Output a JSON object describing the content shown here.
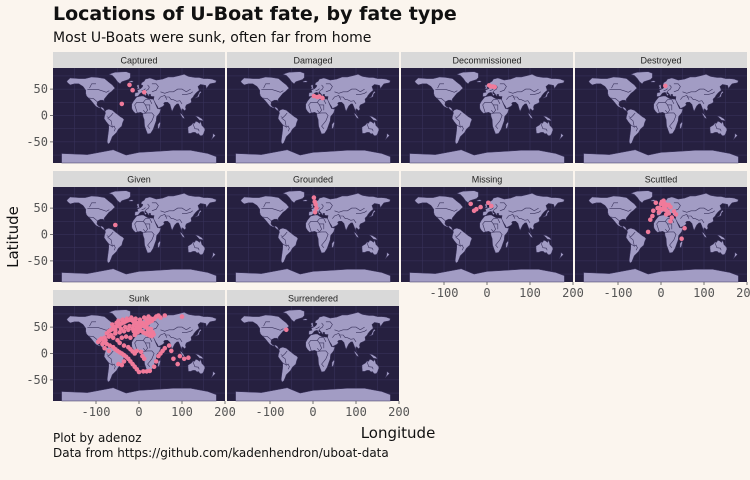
{
  "header": {
    "title": "Locations of U-Boat fate, by fate type",
    "subtitle": "Most U-Boats were sunk, often far from home"
  },
  "caption": {
    "line1": "Plot by adenoz",
    "line2": "Data from https://github.com/kadenhendron/uboat-data"
  },
  "colors": {
    "page_background": "#fbf5ee",
    "panel_background": "#262040",
    "land": "#a29cc4",
    "land_border": "#3a335c",
    "strip_background": "#d9d9d9",
    "point": "#f07a9a"
  },
  "chart_data": {
    "type": "scatter",
    "facet_by": "fate type",
    "xlabel": "Longitude",
    "ylabel": "Latitude",
    "xlim": [
      -200,
      200
    ],
    "ylim": [
      -90,
      90
    ],
    "x_ticks": [
      -100,
      0,
      100,
      200
    ],
    "y_ticks": [
      50,
      0,
      -50
    ],
    "x_tick_labels": [
      "-100",
      "0",
      "100",
      "200"
    ],
    "y_tick_labels": [
      "50",
      "0",
      "-50"
    ],
    "grid": true,
    "panels": [
      {
        "name": "Captured",
        "points": [
          [
            -22,
            58
          ],
          [
            -15,
            48
          ],
          [
            -40,
            22
          ],
          [
            12,
            44
          ]
        ]
      },
      {
        "name": "Damaged",
        "points": [
          [
            2,
            37
          ],
          [
            15,
            36
          ],
          [
            22,
            33
          ],
          [
            10,
            35
          ]
        ]
      },
      {
        "name": "Decommissioned",
        "points": [
          [
            5,
            57
          ],
          [
            9,
            55
          ],
          [
            14,
            55
          ],
          [
            18,
            54
          ]
        ]
      },
      {
        "name": "Destroyed",
        "points": [
          [
            10,
            56
          ]
        ]
      },
      {
        "name": "Given",
        "points": [
          [
            -55,
            18
          ]
        ]
      },
      {
        "name": "Grounded",
        "points": [
          [
            2,
            70
          ],
          [
            4,
            62
          ],
          [
            6,
            57
          ],
          [
            8,
            50
          ],
          [
            5,
            42
          ]
        ]
      },
      {
        "name": "Missing",
        "points": [
          [
            -38,
            58
          ],
          [
            -25,
            48
          ],
          [
            -15,
            52
          ],
          [
            -30,
            45
          ],
          [
            3,
            60
          ],
          [
            10,
            54
          ]
        ]
      },
      {
        "name": "Scuttled",
        "points": [
          [
            -12,
            60
          ],
          [
            -8,
            50
          ],
          [
            -18,
            45
          ],
          [
            -5,
            42
          ],
          [
            -20,
            35
          ],
          [
            -25,
            28
          ],
          [
            2,
            62
          ],
          [
            5,
            56
          ],
          [
            8,
            54
          ],
          [
            11,
            57
          ],
          [
            14,
            55
          ],
          [
            18,
            56
          ],
          [
            22,
            52
          ],
          [
            10,
            47
          ],
          [
            15,
            44
          ],
          [
            18,
            40
          ],
          [
            30,
            44
          ],
          [
            35,
            38
          ],
          [
            25,
            32
          ],
          [
            12,
            38
          ],
          [
            22,
            25
          ],
          [
            -30,
            5
          ],
          [
            48,
            -8
          ],
          [
            55,
            12
          ],
          [
            -5,
            50
          ],
          [
            0,
            58
          ],
          [
            3,
            48
          ],
          [
            6,
            64
          ]
        ]
      },
      {
        "name": "Sunk",
        "points": [
          [
            -75,
            38
          ],
          [
            -70,
            42
          ],
          [
            -65,
            45
          ],
          [
            -60,
            48
          ],
          [
            -55,
            50
          ],
          [
            -50,
            52
          ],
          [
            -45,
            55
          ],
          [
            -40,
            57
          ],
          [
            -35,
            59
          ],
          [
            -30,
            61
          ],
          [
            -25,
            63
          ],
          [
            -20,
            64
          ],
          [
            -15,
            62
          ],
          [
            -10,
            60
          ],
          [
            -5,
            58
          ],
          [
            0,
            57
          ],
          [
            5,
            56
          ],
          [
            10,
            55
          ],
          [
            15,
            55
          ],
          [
            20,
            57
          ],
          [
            25,
            60
          ],
          [
            30,
            62
          ],
          [
            35,
            66
          ],
          [
            40,
            70
          ],
          [
            45,
            72
          ],
          [
            -80,
            30
          ],
          [
            -78,
            25
          ],
          [
            -82,
            22
          ],
          [
            -85,
            18
          ],
          [
            -75,
            18
          ],
          [
            -68,
            15
          ],
          [
            -60,
            12
          ],
          [
            -55,
            8
          ],
          [
            -50,
            5
          ],
          [
            -45,
            2
          ],
          [
            -40,
            0
          ],
          [
            -35,
            -3
          ],
          [
            -30,
            -6
          ],
          [
            -25,
            -10
          ],
          [
            -20,
            -15
          ],
          [
            -15,
            -20
          ],
          [
            -10,
            -25
          ],
          [
            -5,
            -30
          ],
          [
            0,
            -35
          ],
          [
            10,
            -34
          ],
          [
            18,
            -34
          ],
          [
            25,
            -33
          ],
          [
            35,
            -25
          ],
          [
            40,
            -15
          ],
          [
            45,
            -5
          ],
          [
            50,
            0
          ],
          [
            55,
            5
          ],
          [
            60,
            10
          ],
          [
            70,
            15
          ],
          [
            75,
            5
          ],
          [
            80,
            -10
          ],
          [
            90,
            -20
          ],
          [
            95,
            -5
          ],
          [
            105,
            -10
          ],
          [
            115,
            -8
          ],
          [
            -65,
            35
          ],
          [
            -55,
            38
          ],
          [
            -45,
            40
          ],
          [
            -35,
            42
          ],
          [
            -25,
            45
          ],
          [
            -15,
            47
          ],
          [
            -5,
            45
          ],
          [
            5,
            43
          ],
          [
            10,
            40
          ],
          [
            15,
            38
          ],
          [
            20,
            36
          ],
          [
            25,
            34
          ],
          [
            30,
            33
          ],
          [
            -40,
            30
          ],
          [
            -30,
            32
          ],
          [
            -20,
            30
          ],
          [
            -10,
            35
          ],
          [
            -50,
            25
          ],
          [
            -45,
            20
          ],
          [
            -35,
            15
          ],
          [
            -25,
            12
          ],
          [
            -20,
            8
          ],
          [
            -15,
            4
          ],
          [
            -10,
            0
          ],
          [
            -60,
            30
          ],
          [
            -70,
            32
          ],
          [
            -55,
            44
          ],
          [
            -42,
            47
          ],
          [
            -32,
            50
          ],
          [
            -22,
            52
          ],
          [
            -12,
            54
          ],
          [
            -2,
            52
          ],
          [
            8,
            58
          ],
          [
            18,
            62
          ],
          [
            28,
            66
          ],
          [
            -88,
            28
          ],
          [
            -92,
            25
          ],
          [
            -95,
            22
          ],
          [
            -80,
            10
          ],
          [
            -70,
            5
          ],
          [
            -48,
            -20
          ],
          [
            -40,
            -22
          ],
          [
            -35,
            -15
          ],
          [
            -5,
            5
          ],
          [
            5,
            3
          ],
          [
            8,
            -5
          ],
          [
            12,
            -10
          ],
          [
            100,
            70
          ],
          [
            60,
            72
          ],
          [
            50,
            68
          ],
          [
            -62,
            55
          ],
          [
            -52,
            58
          ],
          [
            -48,
            62
          ],
          [
            -38,
            64
          ],
          [
            -28,
            66
          ],
          [
            -18,
            68
          ],
          [
            -8,
            66
          ],
          [
            2,
            64
          ],
          [
            12,
            68
          ],
          [
            22,
            70
          ],
          [
            -6,
            48
          ],
          [
            2,
            50
          ],
          [
            0,
            46
          ],
          [
            -3,
            40
          ],
          [
            -8,
            38
          ],
          [
            -12,
            42
          ],
          [
            12,
            52
          ],
          [
            16,
            50
          ],
          [
            20,
            48
          ],
          [
            28,
            46
          ],
          [
            32,
            40
          ],
          [
            34,
            36
          ],
          [
            20,
            40
          ],
          [
            24,
            38
          ]
        ]
      },
      {
        "name": "Surrendered",
        "points": [
          [
            -62,
            45
          ]
        ]
      }
    ]
  }
}
